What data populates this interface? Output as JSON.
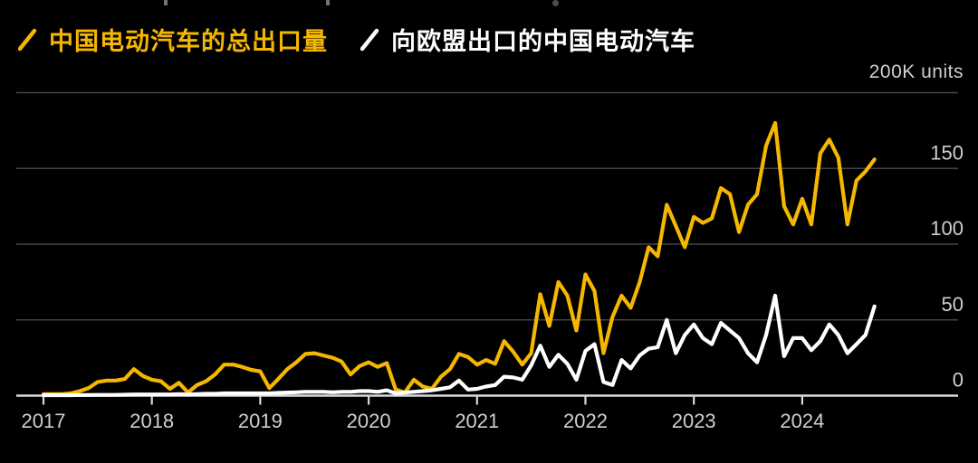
{
  "legend": {
    "series1_label": "中国电动汽车的总出口量",
    "series2_label": "向欧盟出口的中国电动汽车"
  },
  "axis": {
    "unit_label": "200K units",
    "y_tick_labels": [
      "150",
      "100",
      "50",
      "0"
    ],
    "x_tick_labels": [
      "2017",
      "2018",
      "2019",
      "2020",
      "2021",
      "2022",
      "2023",
      "2024"
    ]
  },
  "colors": {
    "background": "#000000",
    "series_total": "#f5b700",
    "series_eu": "#ffffff",
    "gridline": "#454545",
    "axis_line": "#d9d9d9",
    "tick_label": "#cfcfcf"
  },
  "chart_data": {
    "type": "line",
    "title": "",
    "unit": "K units (thousands of vehicles)",
    "frequency": "monthly",
    "x_start": "2017-01",
    "x_end": "2024-09",
    "ylim": [
      0,
      200
    ],
    "grid_values": [
      0,
      50,
      100,
      150,
      200
    ],
    "y_tick_values": [
      150,
      100,
      50,
      0
    ],
    "x_tick_labels": [
      "2017",
      "2018",
      "2019",
      "2020",
      "2021",
      "2022",
      "2023",
      "2024"
    ],
    "legend_position": "top-left",
    "series": [
      {
        "name": "中国电动汽车的总出口量",
        "color": "#f5b700",
        "values": [
          1,
          1,
          1,
          1.5,
          3,
          5,
          9,
          10,
          10,
          11,
          17.5,
          13,
          10.5,
          9.5,
          4.5,
          8.5,
          2,
          7,
          9.5,
          14,
          20.5,
          20.5,
          19,
          17,
          16,
          5,
          11,
          17.5,
          22,
          27.5,
          28,
          26.5,
          25,
          22.5,
          14,
          19.5,
          22,
          19,
          21.5,
          4,
          2,
          10.5,
          6,
          4.5,
          12.5,
          17.5,
          27.5,
          25.5,
          20.5,
          23.5,
          21,
          36,
          29,
          20.5,
          28,
          67,
          46,
          75,
          66,
          43,
          80,
          69,
          28,
          52,
          66,
          58,
          75,
          98,
          92,
          126,
          112,
          98,
          118,
          114,
          117,
          137,
          133,
          108,
          126,
          133,
          165,
          180,
          125,
          113,
          130,
          113,
          160,
          169,
          157,
          113,
          142,
          148,
          156
        ]
      },
      {
        "name": "向欧盟出口的中国电动汽车",
        "color": "#ffffff",
        "values": [
          0.3,
          0.3,
          0.3,
          0.3,
          0.4,
          0.4,
          0.5,
          0.5,
          0.5,
          0.6,
          0.8,
          0.8,
          0.8,
          0.8,
          0.8,
          1,
          0.8,
          1,
          1.2,
          1.2,
          1.5,
          1.5,
          1.5,
          1.5,
          1.5,
          1.5,
          1.8,
          2,
          2.2,
          2.5,
          2.5,
          2.5,
          2.2,
          2.5,
          2.5,
          3,
          3,
          2.5,
          3.5,
          1.5,
          2,
          2.5,
          3,
          3.5,
          4.5,
          5.5,
          10,
          4,
          4.5,
          6,
          7,
          12.5,
          12,
          10.5,
          20,
          33,
          19,
          27,
          21,
          10.5,
          29.5,
          34,
          9,
          7,
          23.5,
          18,
          26.5,
          31,
          32,
          50,
          28,
          40,
          47,
          38,
          34,
          48,
          43,
          38,
          28,
          22,
          40,
          66,
          26,
          38,
          38,
          30,
          36,
          47,
          40,
          28,
          34,
          40,
          59
        ]
      }
    ]
  }
}
